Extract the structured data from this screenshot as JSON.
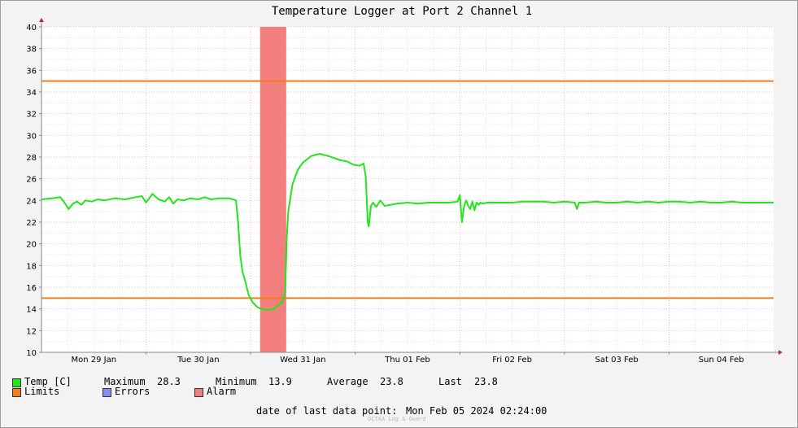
{
  "chart_data": {
    "type": "line",
    "title": "Temperature Logger at Port 2 Channel 1",
    "y_ticks": [
      10,
      12,
      14,
      16,
      18,
      20,
      22,
      24,
      26,
      28,
      30,
      32,
      34,
      36,
      38,
      40
    ],
    "ylim": [
      10,
      40
    ],
    "x_range_days": [
      0,
      7
    ],
    "x_tick_labels": [
      "Mon 29 Jan",
      "Tue 30 Jan",
      "Wed 31 Jan",
      "Thu 01 Feb",
      "Fri 02 Feb",
      "Sat 03 Feb",
      "Sun 04 Feb"
    ],
    "limits": [
      35,
      15
    ],
    "alarm_band_days": [
      2.09,
      2.34
    ],
    "series": [
      {
        "name": "Temp [C]",
        "color": "#22e61c",
        "x": [
          0.0,
          0.1,
          0.18,
          0.22,
          0.26,
          0.3,
          0.34,
          0.38,
          0.42,
          0.48,
          0.54,
          0.6,
          0.7,
          0.8,
          0.9,
          0.96,
          1.0,
          1.06,
          1.12,
          1.18,
          1.22,
          1.26,
          1.3,
          1.36,
          1.42,
          1.5,
          1.56,
          1.62,
          1.7,
          1.8,
          1.86,
          1.88,
          1.9,
          1.92,
          1.95,
          1.98,
          2.02,
          2.06,
          2.1,
          2.16,
          2.22,
          2.26,
          2.3,
          2.33,
          2.345,
          2.36,
          2.4,
          2.45,
          2.5,
          2.58,
          2.66,
          2.74,
          2.8,
          2.86,
          2.92,
          2.98,
          3.04,
          3.08,
          3.1,
          3.12,
          3.13,
          3.15,
          3.17,
          3.2,
          3.24,
          3.28,
          3.34,
          3.4,
          3.5,
          3.6,
          3.7,
          3.8,
          3.9,
          3.98,
          4.0,
          4.02,
          4.04,
          4.06,
          4.08,
          4.1,
          4.12,
          4.14,
          4.16,
          4.18,
          4.2,
          4.22,
          4.26,
          4.3,
          4.4,
          4.5,
          4.6,
          4.7,
          4.8,
          4.9,
          5.0,
          5.1,
          5.12,
          5.14,
          5.2,
          5.3,
          5.4,
          5.5,
          5.6,
          5.7,
          5.8,
          5.9,
          6.0,
          6.1,
          6.2,
          6.3,
          6.4,
          6.5,
          6.6,
          6.7,
          6.8,
          6.9,
          7.0
        ],
        "y": [
          24.1,
          24.2,
          24.3,
          23.8,
          23.2,
          23.7,
          23.9,
          23.6,
          24.0,
          23.9,
          24.1,
          24.0,
          24.2,
          24.1,
          24.3,
          24.4,
          23.8,
          24.6,
          24.1,
          23.9,
          24.3,
          23.7,
          24.1,
          24.0,
          24.2,
          24.1,
          24.3,
          24.1,
          24.2,
          24.2,
          24.0,
          22.0,
          19.0,
          17.5,
          16.5,
          15.3,
          14.6,
          14.2,
          14.0,
          13.9,
          14.0,
          14.3,
          14.6,
          15.5,
          20.5,
          23.0,
          25.5,
          26.8,
          27.5,
          28.1,
          28.3,
          28.1,
          27.9,
          27.7,
          27.6,
          27.3,
          27.2,
          27.4,
          26.2,
          22.0,
          21.6,
          23.5,
          23.8,
          23.4,
          24.0,
          23.5,
          23.6,
          23.7,
          23.8,
          23.7,
          23.8,
          23.8,
          23.8,
          23.9,
          24.5,
          22.0,
          23.4,
          24.0,
          23.5,
          23.2,
          23.9,
          23.1,
          23.8,
          23.6,
          23.8,
          23.7,
          23.8,
          23.8,
          23.8,
          23.8,
          23.9,
          23.9,
          23.9,
          23.8,
          23.9,
          23.8,
          23.2,
          23.8,
          23.8,
          23.9,
          23.8,
          23.8,
          23.9,
          23.8,
          23.9,
          23.8,
          23.9,
          23.9,
          23.8,
          23.9,
          23.8,
          23.8,
          23.9,
          23.8,
          23.8,
          23.8,
          23.8
        ]
      }
    ],
    "grid": true
  },
  "legend": {
    "temp_label": "Temp [C]",
    "max_label": "Maximum",
    "max_value": "28.3",
    "min_label": "Minimum",
    "min_value": "13.9",
    "avg_label": "Average",
    "avg_value": "23.8",
    "last_label": "Last",
    "last_value": "23.8",
    "limits_label": "Limits",
    "errors_label": "Errors",
    "alarm_label": "Alarm"
  },
  "colors": {
    "temp": "#22e61c",
    "limits": "#f57d1b",
    "errors": "#7d8ff2",
    "alarm": "#f27e7e"
  },
  "footer": {
    "last_point_label": "date of last data point:",
    "last_point_value": "Mon Feb 05 2024 02:24:00",
    "credit": "OCTAA Log & Guard"
  }
}
